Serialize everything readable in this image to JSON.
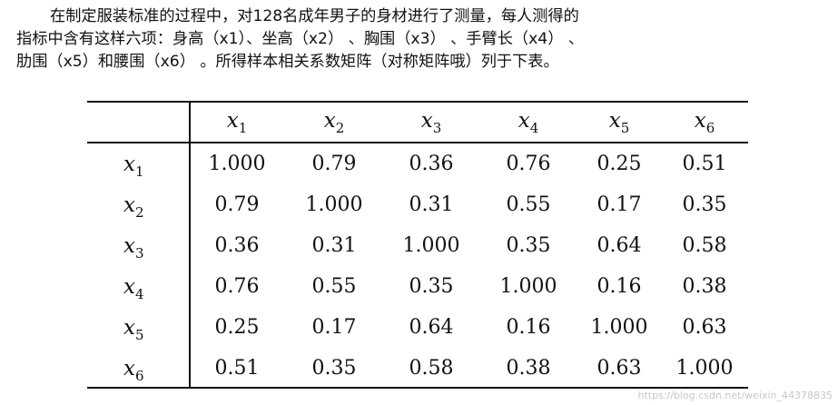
{
  "intro": {
    "line1": "在制定服装标准的过程中，对128名成年男子的身材进行了测量，每人测得的",
    "line2": "指标中含有这样六项：身高（x1）、坐高（x2）  、胸围（x3）  、手臂长（x4）  、",
    "line3": "肋围（x5）和腰围（x6）  。所得样本相关系数矩阵（对称矩阵哦）列于下表。"
  },
  "table": {
    "columns": [
      {
        "var": "x",
        "sub": "1"
      },
      {
        "var": "x",
        "sub": "2"
      },
      {
        "var": "x",
        "sub": "3"
      },
      {
        "var": "x",
        "sub": "4"
      },
      {
        "var": "x",
        "sub": "5"
      },
      {
        "var": "x",
        "sub": "6"
      }
    ],
    "rows": [
      {
        "var": "x",
        "sub": "1",
        "values": [
          "1.000",
          "0.79",
          "0.36",
          "0.76",
          "0.25",
          "0.51"
        ]
      },
      {
        "var": "x",
        "sub": "2",
        "values": [
          "0.79",
          "1.000",
          "0.31",
          "0.55",
          "0.17",
          "0.35"
        ]
      },
      {
        "var": "x",
        "sub": "3",
        "values": [
          "0.36",
          "0.31",
          "1.000",
          "0.35",
          "0.64",
          "0.58"
        ]
      },
      {
        "var": "x",
        "sub": "4",
        "values": [
          "0.76",
          "0.55",
          "0.35",
          "1.000",
          "0.16",
          "0.38"
        ]
      },
      {
        "var": "x",
        "sub": "5",
        "values": [
          "0.25",
          "0.17",
          "0.64",
          "0.16",
          "1.000",
          "0.63"
        ]
      },
      {
        "var": "x",
        "sub": "6",
        "values": [
          "0.51",
          "0.35",
          "0.58",
          "0.38",
          "0.63",
          "1.000"
        ]
      }
    ]
  },
  "watermark": "https://blog.csdn.net/weixin_44378835"
}
